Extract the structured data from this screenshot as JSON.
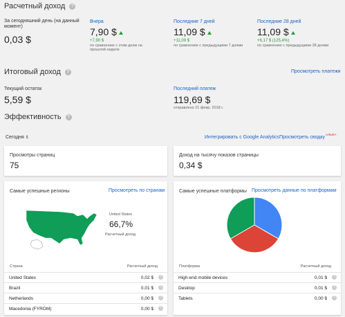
{
  "estimated": {
    "title": "Расчетный доход",
    "today": {
      "label": "За сегодняшний день (на данный момент)",
      "value": "0,03 $"
    },
    "yesterday": {
      "label": "Вчера",
      "value": "7,90 $",
      "delta": "+7,90 $",
      "note": "по сравнению с этим днем на прошлой неделе"
    },
    "last7": {
      "label": "Последние 7 дней",
      "value": "11,09 $",
      "delta": "+11,09 $",
      "note": "по сравнению с предыдущими 7 днями"
    },
    "last28": {
      "label": "Последние 28 дней",
      "value": "11,09 $",
      "delta": "+6,17 $ (125,4%)",
      "note": "по сравнению с предыдущими 28 днями"
    }
  },
  "final": {
    "title": "Итоговый доход",
    "view_payments": "Просмотреть платежи",
    "balance_label": "Текущий остаток",
    "balance_value": "5,59 $",
    "last_payment_label": "Последний платеж",
    "last_payment_value": "119,69 $",
    "last_payment_note": "отправлено 21 февр. 2018 г."
  },
  "performance": {
    "title": "Эффективность",
    "period": "Сегодня",
    "integrate": "Интегрировать с Google Analytics",
    "view_summary": "Просмотреть сводку",
    "alpha": "АЛЬФА",
    "page_views_label": "Просмотры страниц",
    "page_views_value": "75",
    "rpm_label": "Доход на тысячу показов страницы",
    "rpm_value": "0,34 $"
  },
  "regions": {
    "title": "Самые успешные регионы",
    "link": "Просмотреть по странам",
    "map_country": "United States",
    "map_percent": "66,7%",
    "map_caption": "Расчетный доход",
    "col_country": "Страна",
    "col_revenue": "Расчетный доход",
    "rows": [
      {
        "name": "United States",
        "value": "0,02 $"
      },
      {
        "name": "Brazil",
        "value": "0,01 $"
      },
      {
        "name": "Netherlands",
        "value": "0,00 $"
      },
      {
        "name": "Macedonia (FYROM)",
        "value": "0,00 $"
      }
    ]
  },
  "platforms": {
    "title": "Самые успешные платформы",
    "link": "Просмотреть данные по платформам",
    "col_platform": "Платформа",
    "col_revenue": "Расчетный доход",
    "rows": [
      {
        "name": "High-end mobile devices",
        "value": "0,01 $"
      },
      {
        "name": "Desktop",
        "value": "0,01 $"
      },
      {
        "name": "Tablets",
        "value": "0,00 $"
      }
    ]
  },
  "chart_data": {
    "type": "pie",
    "categories": [
      "High-end mobile devices",
      "Desktop",
      "Tablets"
    ],
    "values": [
      33.3,
      33.3,
      33.3
    ],
    "colors": [
      "#4285f4",
      "#db4437",
      "#0f9d58"
    ]
  },
  "colors": {
    "accent": "#1a62c2",
    "positive": "#2c9a3a",
    "map_fill": "#0f9d58"
  }
}
